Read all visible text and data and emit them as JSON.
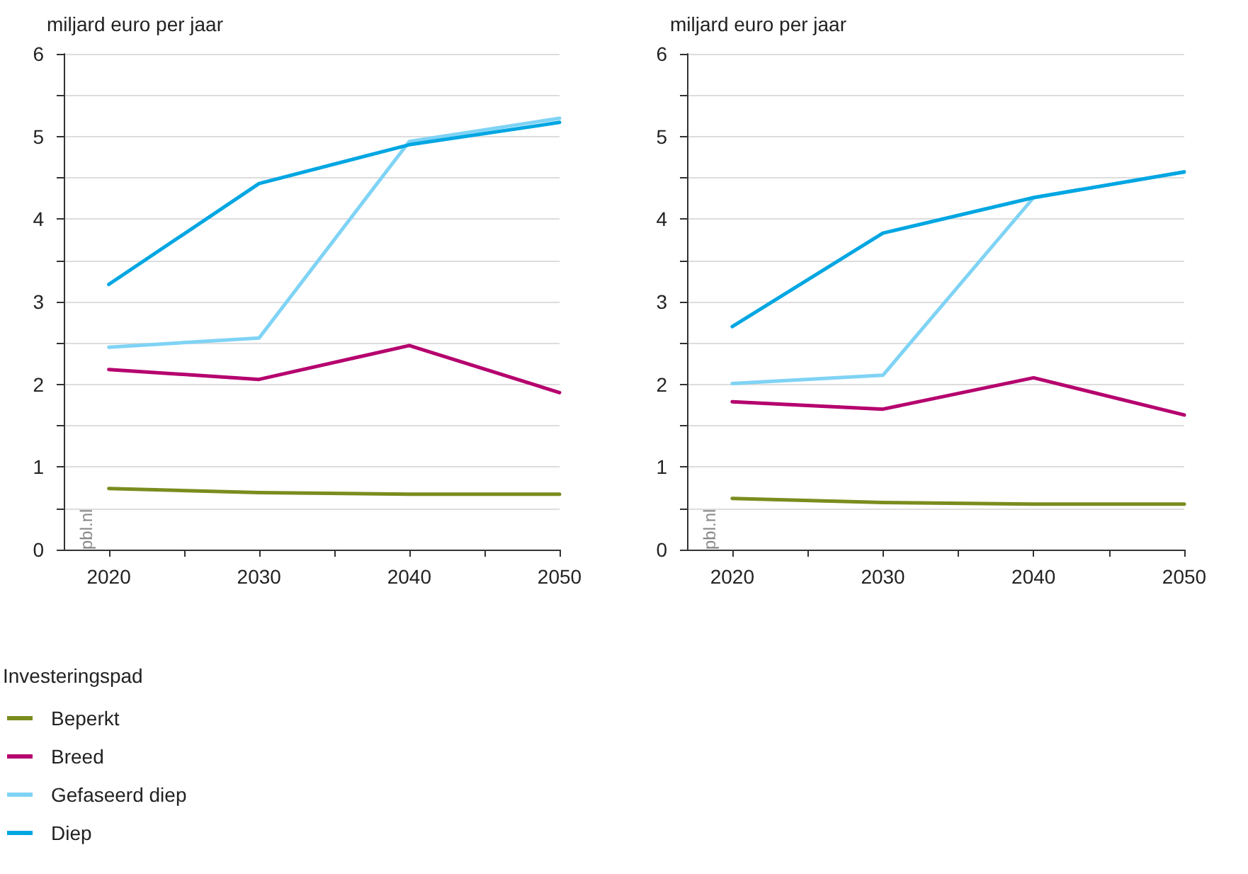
{
  "chart_data": [
    {
      "type": "line",
      "ylabel": "miljard euro per jaar",
      "x": [
        2020,
        2030,
        2040,
        2050
      ],
      "xlim": [
        2017,
        2050
      ],
      "xticks": [
        2020,
        {
          "value": 2025,
          "label": null
        },
        2030,
        {
          "value": 2035,
          "label": null
        },
        2040,
        {
          "value": 2045,
          "label": null
        },
        2050
      ],
      "ylim": [
        0,
        6
      ],
      "yticks": [
        0,
        {
          "value": 0.5,
          "label": null
        },
        1,
        {
          "value": 1.5,
          "label": null
        },
        2,
        {
          "value": 2.5,
          "label": null
        },
        3,
        {
          "value": 3.5,
          "label": null
        },
        4,
        {
          "value": 4.5,
          "label": null
        },
        5,
        {
          "value": 5.5,
          "label": null
        },
        6
      ],
      "grid": "y",
      "marker": "none",
      "line_style": "solid",
      "legend": "bottom left",
      "legend_title": "Investeringspad",
      "annotations": [
        "pbl.nl"
      ],
      "series": [
        {
          "name": "Beperkt",
          "color": "#7a8c1e",
          "values": [
            0.74,
            0.69,
            0.67,
            0.67
          ]
        },
        {
          "name": "Breed",
          "color": "#b5006e",
          "values": [
            2.18,
            2.06,
            2.47,
            1.9
          ]
        },
        {
          "name": "Gefaseerd diep",
          "color": "#7fd3f5",
          "values": [
            2.45,
            2.56,
            4.94,
            5.22
          ]
        },
        {
          "name": "Diep",
          "color": "#00a6e2",
          "values": [
            3.21,
            4.43,
            4.9,
            5.17
          ]
        }
      ]
    },
    {
      "type": "line",
      "ylabel": "miljard euro per jaar",
      "x": [
        2020,
        2030,
        2040,
        2050
      ],
      "xlim": [
        2017,
        2050
      ],
      "xticks": [
        2020,
        {
          "value": 2025,
          "label": null
        },
        2030,
        {
          "value": 2035,
          "label": null
        },
        2040,
        {
          "value": 2045,
          "label": null
        },
        2050
      ],
      "ylim": [
        0,
        6
      ],
      "yticks": [
        0,
        {
          "value": 0.5,
          "label": null
        },
        1,
        {
          "value": 1.5,
          "label": null
        },
        2,
        {
          "value": 2.5,
          "label": null
        },
        3,
        {
          "value": 3.5,
          "label": null
        },
        4,
        {
          "value": 4.5,
          "label": null
        },
        5,
        {
          "value": 5.5,
          "label": null
        },
        6
      ],
      "grid": "y",
      "marker": "none",
      "line_style": "solid",
      "annotations": [
        "pbl.nl"
      ],
      "series": [
        {
          "color": "#7a8c1e",
          "values": [
            0.62,
            0.57,
            0.55,
            0.55
          ]
        },
        {
          "color": "#b5006e",
          "values": [
            1.79,
            1.7,
            2.08,
            1.63
          ]
        },
        {
          "color": "#7fd3f5",
          "values": [
            2.01,
            2.11,
            4.26,
            4.57
          ]
        },
        {
          "color": "#00a6e2",
          "values": [
            2.7,
            3.83,
            4.26,
            4.57
          ]
        }
      ]
    }
  ]
}
